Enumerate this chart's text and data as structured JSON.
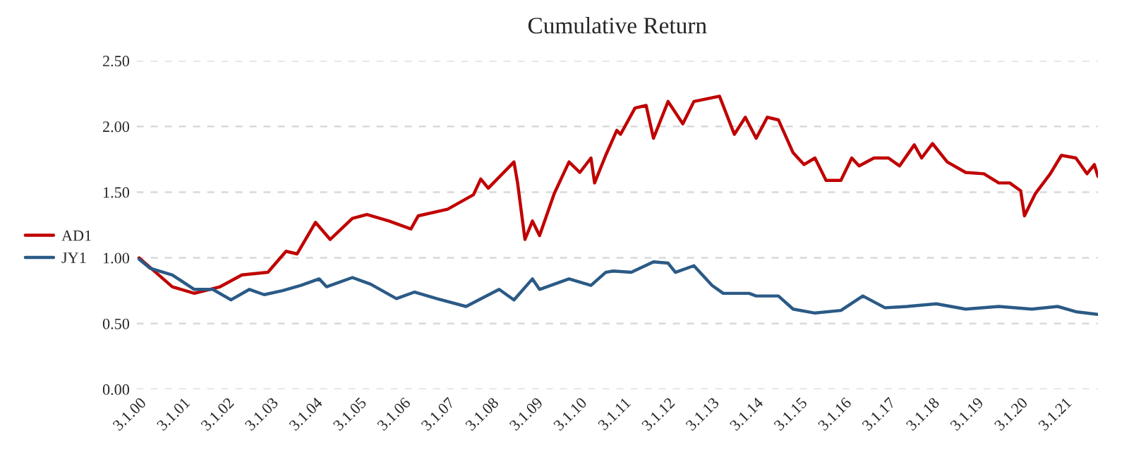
{
  "chart_data": {
    "type": "line",
    "title": "Cumulative Return",
    "xlim": [
      "2000-02-09",
      "2021-12-01"
    ],
    "xticks": [
      {
        "value": "2000-03-01",
        "label": "3.1.00"
      },
      {
        "value": "2001-03-01",
        "label": "3.1.01"
      },
      {
        "value": "2002-03-01",
        "label": "3.1.02"
      },
      {
        "value": "2003-03-01",
        "label": "3.1.03"
      },
      {
        "value": "2004-03-01",
        "label": "3.1.04"
      },
      {
        "value": "2005-03-01",
        "label": "3.1.05"
      },
      {
        "value": "2006-03-01",
        "label": "3.1.06"
      },
      {
        "value": "2007-03-01",
        "label": "3.1.07"
      },
      {
        "value": "2008-03-01",
        "label": "3.1.08"
      },
      {
        "value": "2009-03-01",
        "label": "3.1.09"
      },
      {
        "value": "2010-03-01",
        "label": "3.1.10"
      },
      {
        "value": "2011-03-01",
        "label": "3.1.11"
      },
      {
        "value": "2012-03-01",
        "label": "3.1.12"
      },
      {
        "value": "2013-03-01",
        "label": "3.1.13"
      },
      {
        "value": "2014-03-01",
        "label": "3.1.14"
      },
      {
        "value": "2015-03-01",
        "label": "3.1.15"
      },
      {
        "value": "2016-03-01",
        "label": "3.1.16"
      },
      {
        "value": "2017-03-01",
        "label": "3.1.17"
      },
      {
        "value": "2018-03-01",
        "label": "3.1.18"
      },
      {
        "value": "2019-03-01",
        "label": "3.1.19"
      },
      {
        "value": "2020-03-01",
        "label": "3.1.20"
      },
      {
        "value": "2021-03-01",
        "label": "3.1.21"
      }
    ],
    "ylim": [
      0,
      2.5
    ],
    "yticks": [
      {
        "value": 0,
        "label": "0.00"
      },
      {
        "value": 0.5,
        "label": "0.50"
      },
      {
        "value": 1,
        "label": "1.00"
      },
      {
        "value": 1.5,
        "label": "1.50"
      },
      {
        "value": 2,
        "label": "2.00"
      },
      {
        "value": 2.5,
        "label": "2.50"
      }
    ],
    "grid": "y",
    "legend": "left",
    "line_style": "solid",
    "marker": "none",
    "series": [
      {
        "name": "AD1",
        "color": "#c00000",
        "x": [
          "2000-03",
          "2000-12",
          "2001-06",
          "2002-01",
          "2002-07",
          "2003-02",
          "2003-07",
          "2003-10",
          "2004-03",
          "2004-07",
          "2005-01",
          "2005-05",
          "2005-11",
          "2006-05",
          "2006-07",
          "2007-03",
          "2007-10",
          "2007-12",
          "2008-02",
          "2008-09",
          "2008-10",
          "2008-12",
          "2009-02",
          "2009-04",
          "2009-08",
          "2009-12",
          "2010-03",
          "2010-06",
          "2010-07",
          "2010-10",
          "2011-01",
          "2011-02",
          "2011-06",
          "2011-09",
          "2011-11",
          "2012-03",
          "2012-07",
          "2012-10",
          "2013-05",
          "2013-09",
          "2013-12",
          "2014-03",
          "2014-06",
          "2014-09",
          "2015-01",
          "2015-04",
          "2015-07",
          "2015-10",
          "2016-02",
          "2016-05",
          "2016-07",
          "2016-11",
          "2017-03",
          "2017-06",
          "2017-10",
          "2017-12",
          "2018-03",
          "2018-07",
          "2018-12",
          "2019-05",
          "2019-09",
          "2019-12",
          "2020-03",
          "2020-04",
          "2020-07",
          "2020-11",
          "2021-02",
          "2021-06",
          "2021-09",
          "2021-11",
          "2021-12"
        ],
        "values": [
          1.0,
          0.78,
          0.73,
          0.78,
          0.87,
          0.89,
          1.05,
          1.03,
          1.27,
          1.14,
          1.3,
          1.33,
          1.28,
          1.22,
          1.32,
          1.37,
          1.48,
          1.6,
          1.53,
          1.73,
          1.57,
          1.14,
          1.28,
          1.17,
          1.49,
          1.73,
          1.65,
          1.76,
          1.57,
          1.78,
          1.97,
          1.94,
          2.14,
          2.16,
          1.91,
          2.19,
          2.02,
          2.19,
          2.23,
          1.94,
          2.07,
          1.91,
          2.07,
          2.05,
          1.8,
          1.71,
          1.76,
          1.59,
          1.59,
          1.76,
          1.7,
          1.76,
          1.76,
          1.7,
          1.86,
          1.76,
          1.87,
          1.73,
          1.65,
          1.64,
          1.57,
          1.57,
          1.51,
          1.32,
          1.49,
          1.64,
          1.78,
          1.76,
          1.64,
          1.71,
          1.62
        ]
      },
      {
        "name": "JY1",
        "color": "#2b5a86",
        "x": [
          "2000-03",
          "2000-06",
          "2000-12",
          "2001-06",
          "2001-11",
          "2002-04",
          "2002-09",
          "2003-01",
          "2003-06",
          "2003-11",
          "2004-04",
          "2004-06",
          "2005-01",
          "2005-06",
          "2006-01",
          "2006-06",
          "2006-12",
          "2007-08",
          "2008-05",
          "2008-09",
          "2009-02",
          "2009-04",
          "2009-12",
          "2010-06",
          "2010-10",
          "2010-12",
          "2011-05",
          "2011-11",
          "2012-03",
          "2012-05",
          "2012-10",
          "2013-03",
          "2013-06",
          "2014-01",
          "2014-03",
          "2014-09",
          "2015-01",
          "2015-07",
          "2016-02",
          "2016-08",
          "2017-02",
          "2017-08",
          "2018-04",
          "2018-12",
          "2019-09",
          "2020-06",
          "2021-01",
          "2021-06",
          "2021-12"
        ],
        "values": [
          0.99,
          0.92,
          0.87,
          0.76,
          0.76,
          0.68,
          0.76,
          0.72,
          0.75,
          0.79,
          0.84,
          0.78,
          0.85,
          0.8,
          0.69,
          0.74,
          0.69,
          0.63,
          0.76,
          0.68,
          0.84,
          0.76,
          0.84,
          0.79,
          0.89,
          0.9,
          0.89,
          0.97,
          0.96,
          0.89,
          0.94,
          0.79,
          0.73,
          0.73,
          0.71,
          0.71,
          0.61,
          0.58,
          0.6,
          0.71,
          0.62,
          0.63,
          0.65,
          0.61,
          0.63,
          0.61,
          0.63,
          0.59,
          0.57
        ]
      }
    ]
  }
}
